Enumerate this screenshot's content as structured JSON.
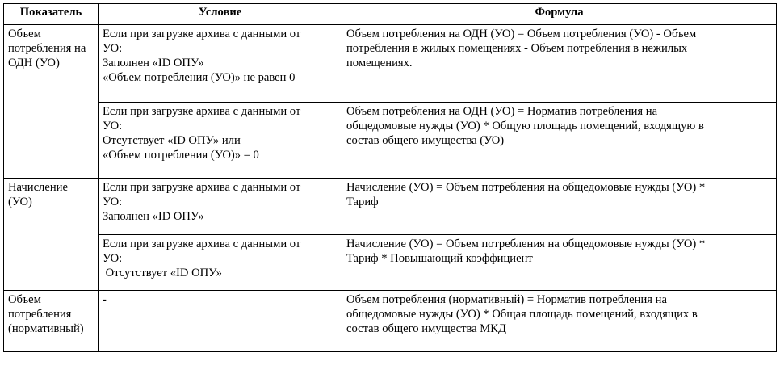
{
  "table": {
    "headers": [
      "Показатель",
      "Условие",
      "Формула"
    ],
    "groups": [
      {
        "indicator": [
          "Объем",
          "потребления на",
          "ОДН (УО)"
        ],
        "rows": [
          {
            "condition": [
              "Если при загрузке архива с данными от",
              "УО:",
              "Заполнен «ID ОПУ»",
              "«Объем потребления (УО)» не равен 0"
            ],
            "formula": [
              "Объем потребления на ОДН (УО) = Объем потребления (УО) - Объем",
              "потребления в жилых помещениях - Объем потребления в нежилых",
              "помещениях."
            ]
          },
          {
            "condition": [
              "Если при загрузке архива с данными от",
              "УО:",
              "Отсутствует «ID ОПУ» или",
              "«Объем потребления (УО)» = 0"
            ],
            "formula": [
              "Объем потребления на ОДН (УО) = Норматив потребления на",
              "общедомовые нужды (УО) * Общую площадь помещений, входящую в",
              "состав общего имущества (УО)"
            ]
          }
        ]
      },
      {
        "indicator": [
          "Начисление",
          "(УО)"
        ],
        "rows": [
          {
            "condition": [
              "Если при загрузке архива с данными от",
              "УО:",
              "Заполнен «ID ОПУ»"
            ],
            "formula": [
              "Начисление (УО) = Объем потребления на общедомовые нужды (УО) *",
              "Тариф"
            ]
          },
          {
            "condition": [
              "Если при загрузке архива с данными от",
              "УО:",
              " Отсутствует «ID ОПУ»"
            ],
            "formula": [
              "Начисление (УО) = Объем потребления на общедомовые нужды (УО) *",
              "Тариф * Повышающий коэффициент"
            ]
          }
        ]
      },
      {
        "indicator": [
          "Объем",
          "потребления",
          "(нормативный)"
        ],
        "rows": [
          {
            "condition": [
              "-"
            ],
            "formula": [
              "Объем потребления (нормативный) = Норматив потребления на",
              "общедомовые нужды (УО) * Общая площадь помещений, входящих в",
              "состав общего имущества МКД"
            ]
          }
        ]
      }
    ]
  }
}
